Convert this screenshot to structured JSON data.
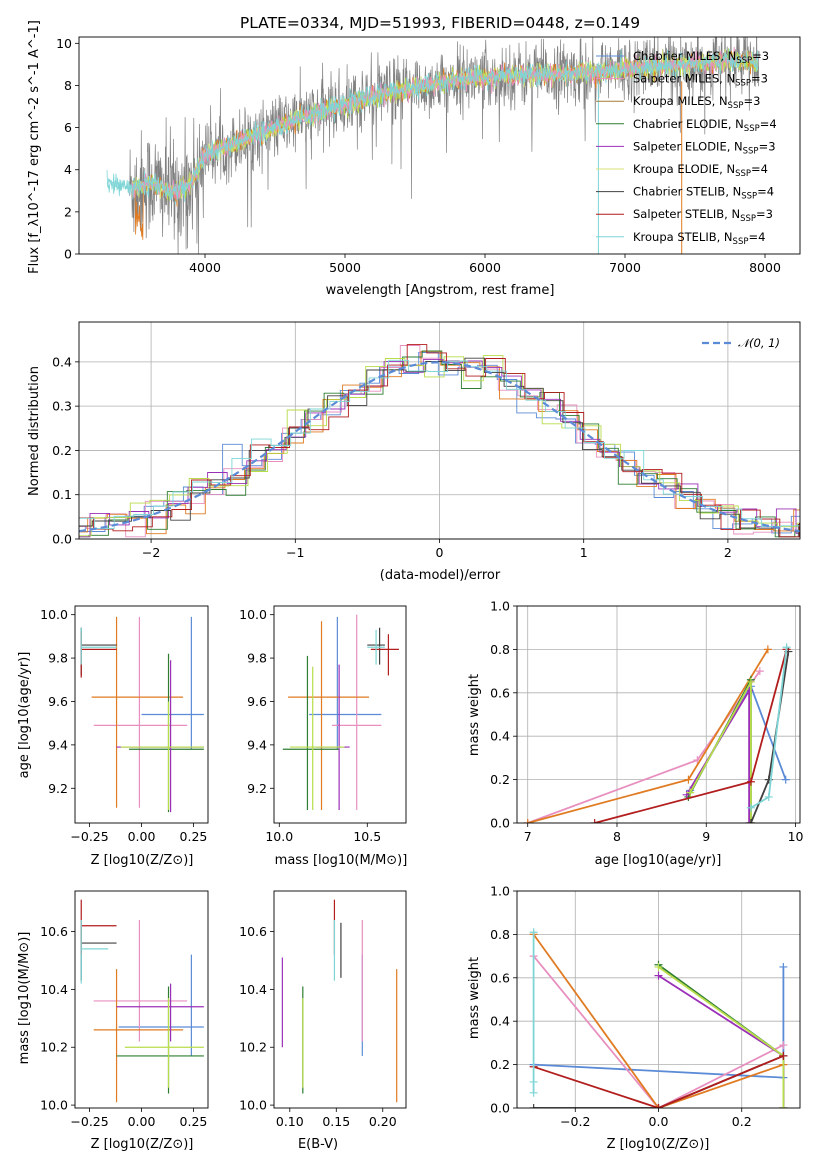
{
  "colors": {
    "Chabrier MILES": "#5b8bd6",
    "Salpeter MILES": "#e88fbf",
    "Kroupa MILES": "#a77b3a",
    "Chabrier ELODIE": "#2e7d32",
    "Salpeter ELODIE": "#9b30b8",
    "Kroupa ELODIE": "#d7e27a",
    "Chabrier STELIB": "#404040",
    "Salpeter STELIB": "#b21d1d",
    "Kroupa STELIB": "#7fd5d6",
    "data": "#808080",
    "orange": "#e07b22",
    "lime": "#b8dc4a"
  },
  "chart_data": [
    {
      "id": "spectrum",
      "type": "line",
      "title": "PLATE=0334, MJD=51993, FIBERID=0448, z=0.149",
      "xlabel": "wavelength [Angstrom, rest frame]",
      "ylabel": "Flux [f_λ10^-17 erg cm^-2 s^-1 A^-1]",
      "xlim": [
        3100,
        8250
      ],
      "ylim": [
        0,
        10.3
      ],
      "xticks": [
        "4000",
        "5000",
        "6000",
        "7000",
        "8000"
      ],
      "yticks": [
        "0",
        "2",
        "4",
        "6",
        "8",
        "10"
      ],
      "legend_position": "upper-right",
      "legend": [
        {
          "base": "Chabrier MILES, N",
          "n": "=3",
          "key": "Chabrier MILES"
        },
        {
          "base": "Salpeter MILES, N",
          "n": "=3",
          "key": "Salpeter MILES"
        },
        {
          "base": "Kroupa MILES, N",
          "n": "=3",
          "key": "Kroupa MILES"
        },
        {
          "base": "Chabrier ELODIE, N",
          "n": "=4",
          "key": "Chabrier ELODIE"
        },
        {
          "base": "Salpeter ELODIE, N",
          "n": "=3",
          "key": "Salpeter ELODIE"
        },
        {
          "base": "Kroupa ELODIE, N",
          "n": "=4",
          "key": "Kroupa ELODIE"
        },
        {
          "base": "Chabrier STELIB, N",
          "n": "=4",
          "key": "Chabrier STELIB"
        },
        {
          "base": "Salpeter STELIB, N",
          "n": "=3",
          "key": "Salpeter STELIB"
        },
        {
          "base": "Kroupa STELIB, N",
          "n": "=4",
          "key": "Kroupa STELIB"
        }
      ],
      "sub": "SSP",
      "continuum": [
        [
          3300,
          3.4
        ],
        [
          3500,
          3.1
        ],
        [
          3600,
          3.4
        ],
        [
          3700,
          3.1
        ],
        [
          3800,
          2.9
        ],
        [
          3900,
          3.4
        ],
        [
          4000,
          4.7
        ],
        [
          4100,
          5.0
        ],
        [
          4200,
          5.2
        ],
        [
          4300,
          5.5
        ],
        [
          4500,
          6.0
        ],
        [
          4700,
          6.5
        ],
        [
          4900,
          6.9
        ],
        [
          5000,
          7.1
        ],
        [
          5200,
          7.5
        ],
        [
          5400,
          7.8
        ],
        [
          5600,
          8.0
        ],
        [
          5800,
          8.3
        ],
        [
          6000,
          8.4
        ],
        [
          6200,
          8.5
        ],
        [
          6400,
          8.5
        ],
        [
          6600,
          8.6
        ],
        [
          6800,
          8.6
        ],
        [
          7000,
          8.8
        ],
        [
          7200,
          8.9
        ],
        [
          7400,
          9.0
        ],
        [
          7600,
          9.1
        ],
        [
          7800,
          9.2
        ],
        [
          7950,
          9.1
        ]
      ]
    },
    {
      "id": "residuals",
      "type": "bar",
      "xlabel": "(data-model)/error",
      "ylabel": "Normed distribution",
      "xlim": [
        -2.5,
        2.5
      ],
      "ylim": [
        0,
        0.49
      ],
      "xticks": [
        "−2",
        "−1",
        "0",
        "1",
        "2"
      ],
      "yticks": [
        "0.0",
        "0.1",
        "0.2",
        "0.3",
        "0.4"
      ],
      "legend": "𝒩(0, 1)",
      "legend_position": "upper-right",
      "grid": true
    },
    {
      "id": "age-vs-Z",
      "type": "scatter",
      "xlabel": "Z [log10(Z/Z⊙)]",
      "ylabel": "age [log10(age/yr)]",
      "xlim": [
        -0.32,
        0.32
      ],
      "ylim": [
        9.04,
        10.04
      ],
      "xticks": [
        "−0.25",
        "0.00",
        "0.25"
      ],
      "yticks": [
        "9.2",
        "9.4",
        "9.6",
        "9.8",
        "10.0"
      ],
      "points": [
        {
          "c": "Chabrier MILES",
          "x": 0.24,
          "xe": [
            0.0,
            0.3
          ],
          "y": 9.54,
          "ye": [
            9.38,
            9.99
          ]
        },
        {
          "c": "Salpeter MILES",
          "x": -0.01,
          "xe": [
            -0.23,
            0.22
          ],
          "y": 9.49,
          "ye": [
            9.11,
            9.99
          ]
        },
        {
          "c": "orange",
          "x": -0.12,
          "xe": [
            -0.24,
            0.2
          ],
          "y": 9.62,
          "ye": [
            9.11,
            9.99
          ]
        },
        {
          "c": "Chabrier ELODIE",
          "x": 0.13,
          "xe": [
            -0.06,
            0.3
          ],
          "y": 9.38,
          "ye": [
            9.09,
            9.82
          ]
        },
        {
          "c": "Salpeter ELODIE",
          "x": 0.14,
          "xe": [
            -0.12,
            0.3
          ],
          "y": 9.39,
          "ye": [
            9.09,
            9.79
          ]
        },
        {
          "c": "lime",
          "x": 0.13,
          "xe": [
            -0.1,
            0.3
          ],
          "y": 9.39,
          "ye": [
            9.1,
            9.6
          ]
        },
        {
          "c": "Chabrier STELIB",
          "x": -0.29,
          "xe": [
            -0.29,
            -0.12
          ],
          "y": 9.86,
          "ye": [
            9.72,
            9.94
          ]
        },
        {
          "c": "Salpeter STELIB",
          "x": -0.29,
          "xe": [
            -0.29,
            -0.12
          ],
          "y": 9.84,
          "ye": [
            9.71,
            9.92
          ]
        },
        {
          "c": "Kroupa STELIB",
          "x": -0.29,
          "xe": [
            -0.29,
            -0.12
          ],
          "y": 9.85,
          "ye": [
            9.77,
            9.94
          ]
        }
      ]
    },
    {
      "id": "age-vs-mass",
      "type": "scatter",
      "xlabel": "mass [log10(M/M⊙)]",
      "ylabel": "",
      "xlim": [
        9.97,
        10.72
      ],
      "ylim": [
        9.04,
        10.04
      ],
      "xticks": [
        "10.0",
        "10.5"
      ],
      "yticks": [
        "9.2",
        "9.4",
        "9.6",
        "9.8",
        "10.0"
      ],
      "points": [
        {
          "c": "Chabrier MILES",
          "x": 10.33,
          "xe": [
            10.17,
            10.58
          ],
          "y": 9.54,
          "ye": [
            9.38,
            9.99
          ]
        },
        {
          "c": "Salpeter MILES",
          "x": 10.44,
          "xe": [
            10.3,
            10.58
          ],
          "y": 9.49,
          "ye": [
            9.1,
            10.0
          ]
        },
        {
          "c": "orange",
          "x": 10.24,
          "xe": [
            10.05,
            10.51
          ],
          "y": 9.62,
          "ye": [
            9.1,
            9.97
          ]
        },
        {
          "c": "Chabrier ELODIE",
          "x": 10.16,
          "xe": [
            10.02,
            10.34
          ],
          "y": 9.38,
          "ye": [
            9.1,
            9.81
          ]
        },
        {
          "c": "Salpeter ELODIE",
          "x": 10.34,
          "xe": [
            10.21,
            10.4
          ],
          "y": 9.39,
          "ye": [
            9.1,
            9.77
          ]
        },
        {
          "c": "lime",
          "x": 10.19,
          "xe": [
            10.06,
            10.37
          ],
          "y": 9.39,
          "ye": [
            9.1,
            9.76
          ]
        },
        {
          "c": "Chabrier STELIB",
          "x": 10.57,
          "xe": [
            10.5,
            10.6
          ],
          "y": 9.86,
          "ye": [
            9.77,
            9.94
          ]
        },
        {
          "c": "Salpeter STELIB",
          "x": 10.62,
          "xe": [
            10.52,
            10.68
          ],
          "y": 9.84,
          "ye": [
            9.72,
            9.91
          ]
        },
        {
          "c": "Kroupa STELIB",
          "x": 10.55,
          "xe": [
            10.5,
            10.6
          ],
          "y": 9.85,
          "ye": [
            9.77,
            9.93
          ]
        }
      ]
    },
    {
      "id": "mass-weight-vs-age",
      "type": "line",
      "xlabel": "age [log10(age/yr)]",
      "ylabel": "mass weight",
      "xlim": [
        6.88,
        10.05
      ],
      "ylim": [
        0,
        1.0
      ],
      "xticks": [
        "7",
        "8",
        "9",
        "10"
      ],
      "yticks": [
        "0.0",
        "0.2",
        "0.4",
        "0.6",
        "0.8",
        "1.0"
      ],
      "grid": true,
      "series": [
        {
          "c": "Chabrier MILES",
          "x": [
            8.82,
            9.5,
            9.89
          ],
          "y": [
            0.15,
            0.63,
            0.2
          ]
        },
        {
          "c": "Salpeter MILES",
          "x": [
            7.0,
            8.9,
            9.6
          ],
          "y": [
            0.0,
            0.29,
            0.7
          ]
        },
        {
          "c": "orange",
          "x": [
            7.0,
            8.8,
            9.69
          ],
          "y": [
            0.0,
            0.2,
            0.8
          ]
        },
        {
          "c": "Chabrier ELODIE",
          "x": [
            8.8,
            9.5,
            9.5
          ],
          "y": [
            0.12,
            0.66,
            0.0
          ]
        },
        {
          "c": "Salpeter ELODIE",
          "x": [
            8.78,
            9.48,
            9.48
          ],
          "y": [
            0.13,
            0.61,
            0.0
          ]
        },
        {
          "c": "lime",
          "x": [
            8.82,
            9.5,
            9.5
          ],
          "y": [
            0.14,
            0.65,
            0.0
          ]
        },
        {
          "c": "Chabrier STELIB",
          "x": [
            9.5,
            9.7,
            9.92
          ],
          "y": [
            0.0,
            0.2,
            0.79
          ]
        },
        {
          "c": "Salpeter STELIB",
          "x": [
            7.75,
            9.5,
            9.9
          ],
          "y": [
            0.0,
            0.19,
            0.8
          ]
        },
        {
          "c": "Kroupa STELIB",
          "x": [
            9.5,
            9.7,
            9.9
          ],
          "y": [
            0.07,
            0.12,
            0.81
          ]
        }
      ]
    },
    {
      "id": "mass-vs-Z",
      "type": "scatter",
      "xlabel": "Z [log10(Z/Z⊙)]",
      "ylabel": "mass [log10(M/M⊙)]",
      "xlim": [
        -0.32,
        0.32
      ],
      "ylim": [
        9.99,
        10.74
      ],
      "xticks": [
        "−0.25",
        "0.00",
        "0.25"
      ],
      "yticks": [
        "10.0",
        "10.2",
        "10.4",
        "10.6"
      ],
      "points": [
        {
          "c": "Chabrier MILES",
          "x": 0.24,
          "xe": [
            -0.11,
            0.3
          ],
          "y": 10.27,
          "ye": [
            10.17,
            10.52
          ]
        },
        {
          "c": "Salpeter MILES",
          "x": -0.01,
          "xe": [
            -0.23,
            0.22
          ],
          "y": 10.36,
          "ye": [
            10.22,
            10.64
          ]
        },
        {
          "c": "orange",
          "x": -0.12,
          "xe": [
            -0.23,
            0.2
          ],
          "y": 10.26,
          "ye": [
            10.01,
            10.47
          ]
        },
        {
          "c": "Chabrier ELODIE",
          "x": 0.13,
          "xe": [
            -0.12,
            0.3
          ],
          "y": 10.17,
          "ye": [
            10.04,
            10.41
          ]
        },
        {
          "c": "Salpeter ELODIE",
          "x": 0.14,
          "xe": [
            -0.12,
            0.3
          ],
          "y": 10.34,
          "ye": [
            10.22,
            10.42
          ]
        },
        {
          "c": "lime",
          "x": 0.13,
          "xe": [
            -0.08,
            0.3
          ],
          "y": 10.2,
          "ye": [
            10.06,
            10.37
          ]
        },
        {
          "c": "Chabrier STELIB",
          "x": -0.29,
          "xe": [
            -0.29,
            -0.12
          ],
          "y": 10.56,
          "ye": [
            10.43,
            10.62
          ]
        },
        {
          "c": "Salpeter STELIB",
          "x": -0.29,
          "xe": [
            -0.29,
            -0.12
          ],
          "y": 10.62,
          "ye": [
            10.52,
            10.71
          ]
        },
        {
          "c": "Kroupa STELIB",
          "x": -0.29,
          "xe": [
            -0.29,
            -0.16
          ],
          "y": 10.54,
          "ye": [
            10.42,
            10.64
          ]
        }
      ]
    },
    {
      "id": "mass-vs-ebv",
      "type": "scatter",
      "xlabel": "E(B-V)",
      "ylabel": "",
      "xlim": [
        0.083,
        0.225
      ],
      "ylim": [
        9.99,
        10.74
      ],
      "xticks": [
        "0.10",
        "0.15",
        "0.20"
      ],
      "yticks": [
        "10.0",
        "10.2",
        "10.4",
        "10.6"
      ],
      "points": [
        {
          "c": "Chabrier MILES",
          "x": 0.178,
          "y": 10.27,
          "ye": [
            10.17,
            10.52
          ]
        },
        {
          "c": "Salpeter MILES",
          "x": 0.178,
          "y": 10.36,
          "ye": [
            10.22,
            10.64
          ]
        },
        {
          "c": "orange",
          "x": 0.215,
          "y": 10.26,
          "ye": [
            10.01,
            10.47
          ]
        },
        {
          "c": "Chabrier ELODIE",
          "x": 0.114,
          "y": 10.17,
          "ye": [
            10.04,
            10.41
          ]
        },
        {
          "c": "Salpeter ELODIE",
          "x": 0.092,
          "y": 10.34,
          "ye": [
            10.2,
            10.51
          ]
        },
        {
          "c": "lime",
          "x": 0.114,
          "y": 10.2,
          "ye": [
            10.06,
            10.37
          ]
        },
        {
          "c": "Chabrier STELIB",
          "x": 0.155,
          "y": 10.56,
          "ye": [
            10.44,
            10.63
          ]
        },
        {
          "c": "Salpeter STELIB",
          "x": 0.148,
          "y": 10.62,
          "ye": [
            10.52,
            10.71
          ]
        },
        {
          "c": "Kroupa STELIB",
          "x": 0.148,
          "y": 10.54,
          "ye": [
            10.43,
            10.64
          ]
        }
      ]
    },
    {
      "id": "mass-weight-vs-Z",
      "type": "line",
      "xlabel": "Z [log10(Z/Z⊙)]",
      "ylabel": "mass weight",
      "xlim": [
        -0.34,
        0.34
      ],
      "ylim": [
        0,
        1.0
      ],
      "xticks": [
        "−0.2",
        "0.0",
        "0.2"
      ],
      "yticks": [
        "0.0",
        "0.2",
        "0.4",
        "0.6",
        "0.8",
        "1.0"
      ],
      "grid": true,
      "series": [
        {
          "c": "Chabrier MILES",
          "x": [
            -0.3,
            0.3,
            0.3
          ],
          "y": [
            0.2,
            0.14,
            0.65
          ]
        },
        {
          "c": "Salpeter MILES",
          "x": [
            -0.3,
            0.0,
            0.3
          ],
          "y": [
            0.7,
            0.0,
            0.29
          ]
        },
        {
          "c": "orange",
          "x": [
            -0.3,
            0.0,
            0.3
          ],
          "y": [
            0.8,
            0.0,
            0.2
          ]
        },
        {
          "c": "Chabrier ELODIE",
          "x": [
            0.0,
            0.3,
            0.3
          ],
          "y": [
            0.66,
            0.24,
            0.0
          ]
        },
        {
          "c": "Salpeter ELODIE",
          "x": [
            0.0,
            0.3,
            0.3
          ],
          "y": [
            0.61,
            0.24,
            0.0
          ]
        },
        {
          "c": "lime",
          "x": [
            0.0,
            0.3,
            0.3
          ],
          "y": [
            0.65,
            0.24,
            0.0
          ]
        },
        {
          "c": "Chabrier STELIB",
          "x": [
            -0.3,
            0.0,
            0.3
          ],
          "y": [
            0.0,
            0.0,
            0.24
          ]
        },
        {
          "c": "Salpeter STELIB",
          "x": [
            -0.3,
            0.0,
            0.3
          ],
          "y": [
            0.19,
            0.0,
            0.24
          ]
        },
        {
          "c": "Kroupa STELIB",
          "x": [
            -0.3,
            -0.3,
            -0.3
          ],
          "y": [
            0.07,
            0.12,
            0.81
          ]
        }
      ]
    }
  ]
}
